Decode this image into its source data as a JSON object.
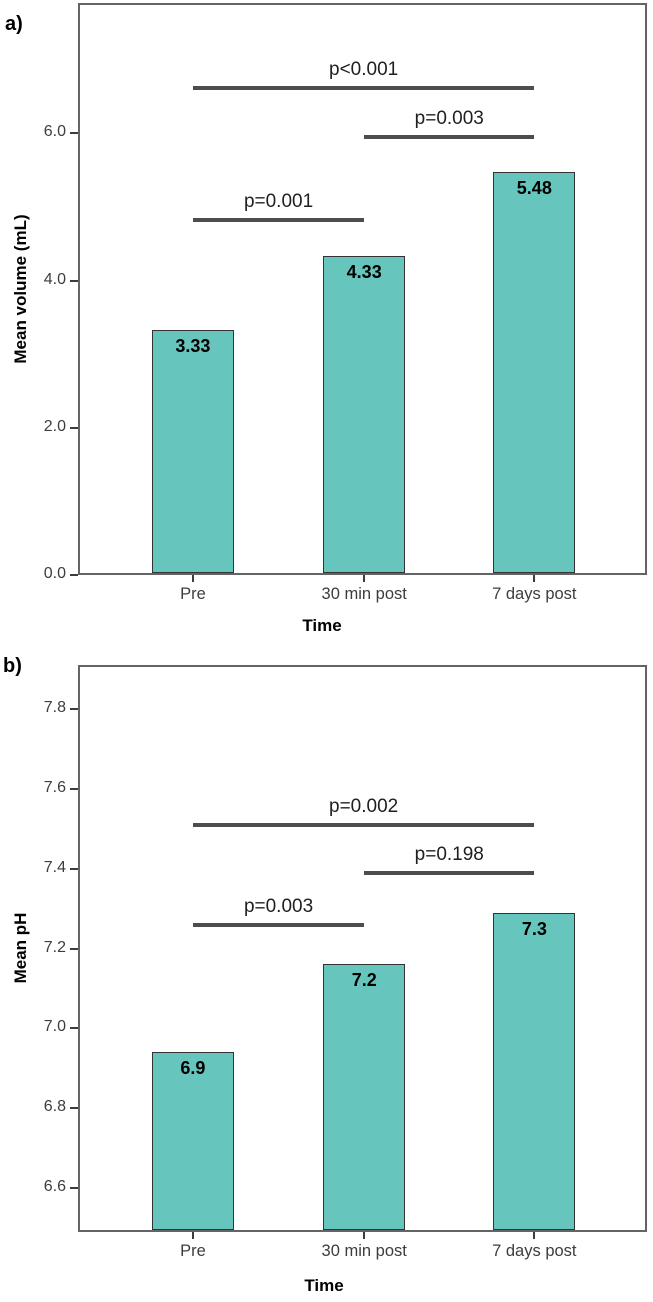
{
  "figure": {
    "background": "#ffffff",
    "bar_color": "#66c5bc",
    "bar_border_color": "#333333",
    "bracket_line_color": "#4d4d4d"
  },
  "chart_data": [
    {
      "type": "bar",
      "panel_label": "a)",
      "xlabel": "Time",
      "ylabel": "Mean volume (mL)",
      "categories": [
        "Pre",
        "30 min post",
        "7 days post"
      ],
      "values": [
        3.33,
        4.33,
        5.48
      ],
      "bar_value_labels": [
        "3.33",
        "4.33",
        "5.48"
      ],
      "yticks": [
        0,
        2,
        4,
        6
      ],
      "ytick_labels": [
        "0.0",
        "2.0",
        "4.0",
        "6.0"
      ],
      "ylim": [
        0,
        7.77
      ],
      "grid": false,
      "legend": null,
      "significance_brackets": [
        {
          "label": "p<0.001",
          "from": 0,
          "to": 2,
          "y": 6.61,
          "from_category": "Pre",
          "to_category": "7 days post"
        },
        {
          "label": "p=0.003",
          "from": 1,
          "to": 2,
          "y": 5.95,
          "from_category": "30 min post",
          "to_category": "7 days post"
        },
        {
          "label": "p=0.001",
          "from": 0,
          "to": 1,
          "y": 4.82,
          "from_category": "Pre",
          "to_category": "30 min post"
        }
      ]
    },
    {
      "type": "bar",
      "panel_label": "b)",
      "xlabel": "Time",
      "ylabel": "Mean pH",
      "categories": [
        "Pre",
        "30 min post",
        "7 days post"
      ],
      "values": [
        6.94,
        7.16,
        7.29
      ],
      "bar_value_labels": [
        "6.9",
        "7.2",
        "7.3"
      ],
      "yticks": [
        6.6,
        6.8,
        7.0,
        7.2,
        7.4,
        7.6,
        7.8
      ],
      "ytick_labels": [
        "6.6",
        "6.8",
        "7.0",
        "7.2",
        "7.4",
        "7.6",
        "7.8"
      ],
      "ylim": [
        6.49,
        7.91
      ],
      "grid": false,
      "legend": null,
      "significance_brackets": [
        {
          "label": "p=0.002",
          "from": 0,
          "to": 2,
          "y": 7.51,
          "from_category": "Pre",
          "to_category": "7 days post"
        },
        {
          "label": "p=0.198",
          "from": 1,
          "to": 2,
          "y": 7.39,
          "from_category": "30 min post",
          "to_category": "7 days post"
        },
        {
          "label": "p=0.003",
          "from": 0,
          "to": 1,
          "y": 7.26,
          "from_category": "Pre",
          "to_category": "30 min post"
        }
      ]
    }
  ]
}
